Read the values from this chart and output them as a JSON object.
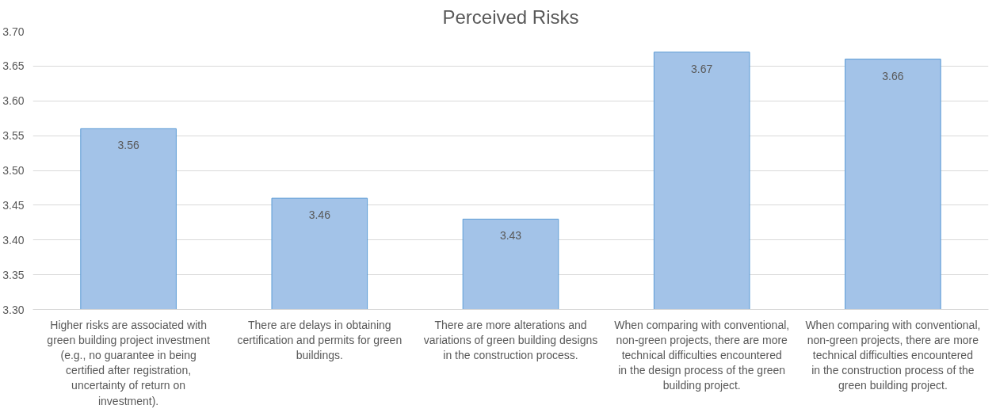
{
  "chart_data": {
    "type": "bar",
    "title": "Perceived Risks",
    "categories": [
      "Higher risks are associated with green building project investment (e.g., no guarantee in being certified after registration, uncertainty of return on investment).",
      "There are delays in obtaining certification and permits for green buildings.",
      "There are more alterations and variations of green building designs in the construction process.",
      "When comparing with conventional, non-green projects, there are more technical difficulties encountered in the design process of the green building project.",
      "When comparing with conventional, non-green projects, there are more technical difficulties encountered in the construction process of the green building project."
    ],
    "values": [
      3.56,
      3.46,
      3.43,
      3.67,
      3.66
    ],
    "color": "#a3c3e8",
    "ylim": [
      3.3,
      3.7
    ],
    "yticks": [
      {
        "value": 3.3,
        "label": "3.30"
      },
      {
        "value": 3.35,
        "label": "3.35"
      },
      {
        "value": 3.4,
        "label": "3.40"
      },
      {
        "value": 3.45,
        "label": "3.45"
      },
      {
        "value": 3.5,
        "label": "3.50"
      },
      {
        "value": 3.55,
        "label": "3.55"
      },
      {
        "value": 3.6,
        "label": "3.60"
      },
      {
        "value": 3.65,
        "label": "3.65"
      },
      {
        "value": 3.7,
        "label": "3.70"
      }
    ],
    "grid": "y",
    "data_labels": true
  }
}
